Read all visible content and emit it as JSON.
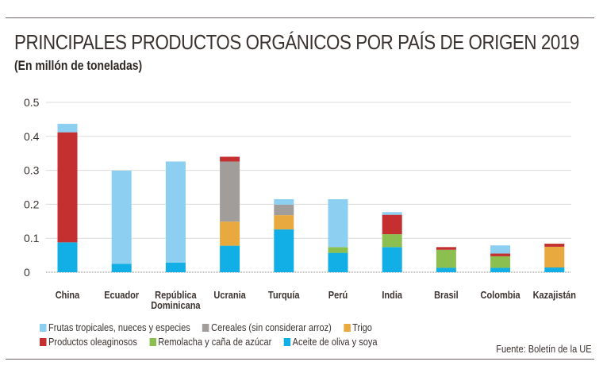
{
  "chart_data": {
    "type": "bar",
    "stacked": true,
    "title": "PRINCIPALES PRODUCTOS ORGÁNICOS POR PAÍS DE ORIGEN 2019",
    "subtitle": "(En millón de toneladas)",
    "source": "Fuente: Boletín de la UE",
    "ylim": [
      0,
      0.5
    ],
    "yticks": [
      "0",
      "0.1",
      "0.2",
      "0.3",
      "0.4",
      "0.5"
    ],
    "grid": true,
    "legend_placement": "bottom",
    "categories": [
      "China",
      "Ecuador",
      "República Dominicana",
      "Ucrania",
      "Turquía",
      "Perú",
      "India",
      "Brasil",
      "Colombia",
      "Kazajistán"
    ],
    "series": [
      {
        "name": "Aceite de oliva y soya",
        "color": "#12aee6",
        "values": [
          0.088,
          0.025,
          0.028,
          0.078,
          0.126,
          0.057,
          0.074,
          0.013,
          0.013,
          0.014
        ]
      },
      {
        "name": "Remolacha y caña de azúcar",
        "color": "#8bbf50",
        "values": [
          0,
          0,
          0,
          0,
          0,
          0.017,
          0.038,
          0.053,
          0.034,
          0
        ]
      },
      {
        "name": "Trigo",
        "color": "#e8a93f",
        "values": [
          0,
          0,
          0,
          0.071,
          0.042,
          0,
          0,
          0,
          0,
          0.061
        ]
      },
      {
        "name": "Cereales (sin considerar arroz)",
        "color": "#a19d9a",
        "values": [
          0,
          0,
          0,
          0.177,
          0.031,
          0,
          0,
          0,
          0,
          0
        ]
      },
      {
        "name": "Productos oleaginosos",
        "color": "#c3302f",
        "values": [
          0.324,
          0,
          0,
          0.014,
          0,
          0,
          0.057,
          0.008,
          0.008,
          0.009
        ]
      },
      {
        "name": "Frutas tropicales, nueces y especies",
        "color": "#8ccff0",
        "values": [
          0.025,
          0.274,
          0.298,
          0,
          0.016,
          0.141,
          0.008,
          0,
          0.024,
          0
        ]
      }
    ],
    "legend_order": [
      [
        "Frutas tropicales, nueces y especies",
        "Cereales (sin considerar arroz)",
        "Trigo"
      ],
      [
        "Productos oleaginosos",
        "Remolacha y caña de azúcar",
        "Aceite de oliva y soya"
      ]
    ]
  }
}
